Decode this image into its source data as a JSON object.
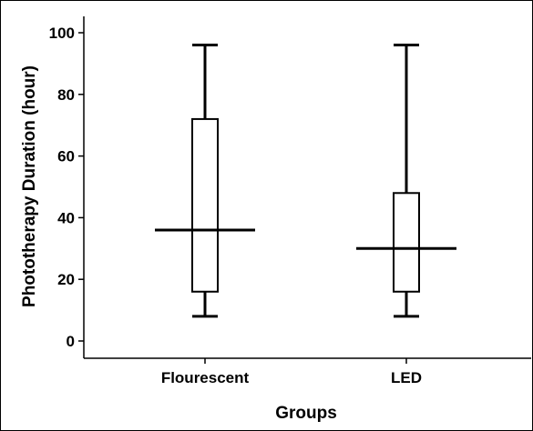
{
  "chart_data": {
    "type": "boxplot",
    "title": "",
    "xlabel": "Groups",
    "ylabel": "Phototherapy Duration (hour)",
    "ylim": [
      -6,
      104
    ],
    "yticks": [
      0,
      20,
      40,
      60,
      80,
      100
    ],
    "categories": [
      "Flourescent",
      "LED"
    ],
    "boxes": [
      {
        "category": "Flourescent",
        "min": 8,
        "q1": 16,
        "median": 36,
        "q3": 72,
        "max": 96
      },
      {
        "category": "LED",
        "min": 8,
        "q1": 16,
        "median": 30,
        "q3": 48,
        "max": 96
      }
    ],
    "grid": false,
    "legend": "none",
    "colors": {
      "box_fill": "#ffffff",
      "stroke": "#000000"
    }
  }
}
